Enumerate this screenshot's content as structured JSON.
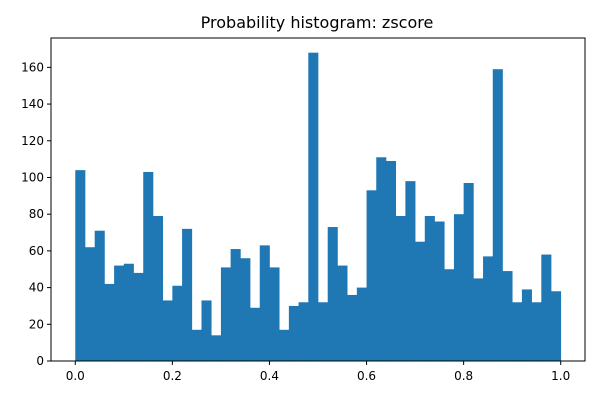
{
  "chart_data": {
    "type": "bar",
    "title": "Probability histogram: zscore",
    "xlabel": "",
    "ylabel": "",
    "xlim": [
      -0.05,
      1.05
    ],
    "ylim": [
      0,
      176
    ],
    "bar_color": "#1f77b4",
    "x_ticks": [
      0.0,
      0.2,
      0.4,
      0.6,
      0.8,
      1.0
    ],
    "x_tick_labels": [
      "0.0",
      "0.2",
      "0.4",
      "0.6",
      "0.8",
      "1.0"
    ],
    "y_ticks": [
      0,
      20,
      40,
      60,
      80,
      100,
      120,
      140,
      160
    ],
    "y_tick_labels": [
      "0",
      "20",
      "40",
      "60",
      "80",
      "100",
      "120",
      "140",
      "160"
    ],
    "bin_start": 0.0,
    "bin_end": 1.0,
    "values": [
      104,
      62,
      71,
      42,
      52,
      53,
      48,
      103,
      79,
      33,
      41,
      72,
      17,
      33,
      14,
      51,
      61,
      56,
      29,
      63,
      51,
      17,
      30,
      32,
      168,
      32,
      73,
      52,
      36,
      40,
      93,
      111,
      109,
      79,
      98,
      65,
      79,
      76,
      50,
      80,
      97,
      45,
      57,
      159,
      49,
      32,
      39,
      32,
      58,
      38
    ],
    "grid": false,
    "legend": "none"
  }
}
